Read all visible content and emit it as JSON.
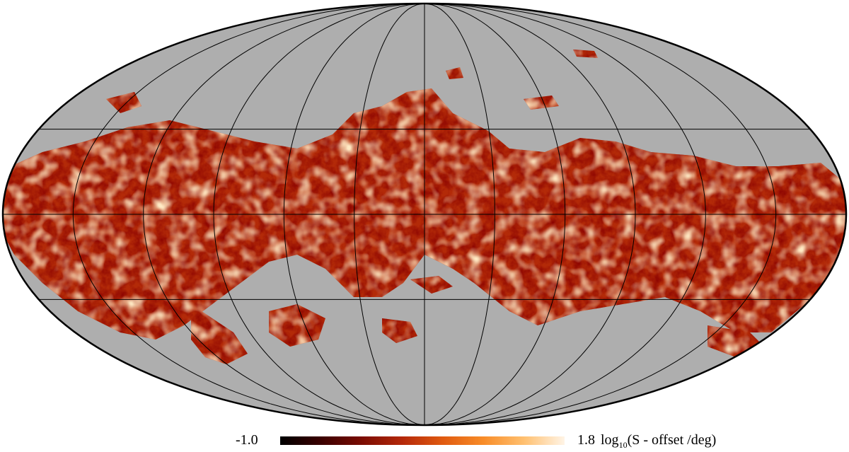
{
  "map": {
    "projection": "mollweide",
    "graticule": true,
    "colors": {
      "masked": "#aeaeae",
      "graticule": "#000000",
      "outline": "#000000"
    }
  },
  "colorbar": {
    "min_label": "-1.0",
    "max_label": "1.8",
    "unit_prefix": "log",
    "unit_sub": "10",
    "unit_suffix": "(S - offset /deg)",
    "colormap": [
      "#000000",
      "#3a0000",
      "#7a0c02",
      "#b4280a",
      "#e05a10",
      "#f88c28",
      "#ffc070",
      "#fff4e6"
    ]
  }
}
